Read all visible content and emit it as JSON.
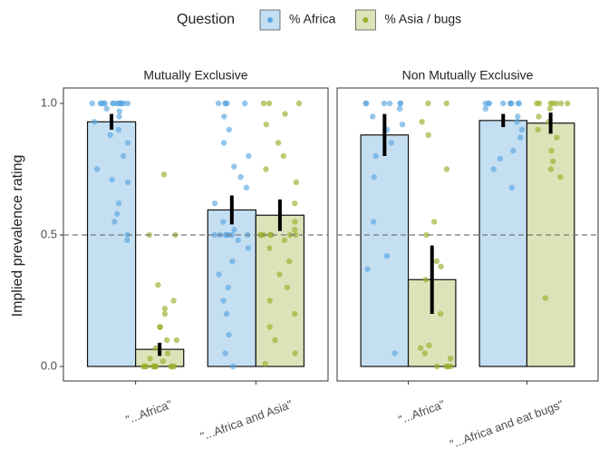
{
  "legend_title": "Question",
  "ylabel": "Implied prevalence rating",
  "chart_data": [
    {
      "type": "bar",
      "title": "Mutually Exclusive",
      "categories": [
        "\"...Africa\"",
        "\"...Africa and Asia\""
      ],
      "ylim": [
        0,
        1
      ],
      "yticks": [
        {
          "value": 0,
          "label": "0.0"
        },
        {
          "value": 0.5,
          "label": "0.5"
        },
        {
          "value": 1,
          "label": "1.0"
        }
      ],
      "reference_line": 0.5,
      "series": [
        {
          "name": "% Africa",
          "color": "#5aa6e0",
          "fill": "#c5dff2",
          "values": [
            0.93,
            0.595
          ],
          "errors": [
            0.03,
            0.055
          ],
          "points": [
            [
              1,
              1,
              1,
              1,
              1,
              1,
              1,
              1,
              1,
              1,
              1,
              1,
              1,
              1,
              0.98,
              0.97,
              0.95,
              0.93,
              0.9,
              0.88,
              0.85,
              0.8,
              0.75,
              0.71,
              0.7,
              0.62,
              0.58,
              0.55,
              0.5,
              0.48
            ],
            [
              1,
              1,
              1,
              1,
              1,
              0.95,
              0.9,
              0.85,
              0.8,
              0.76,
              0.72,
              0.68,
              0.62,
              0.55,
              0.52,
              0.5,
              0.5,
              0.5,
              0.5,
              0.5,
              0.5,
              0.5,
              0.48,
              0.45,
              0.4,
              0.35,
              0.3,
              0.25,
              0.2,
              0.12,
              0.05,
              0
            ]
          ]
        },
        {
          "name": "% Asia / bugs",
          "color": "#9aaf2a",
          "fill": "#dde3b8",
          "values": [
            0.065,
            0.575
          ],
          "errors": [
            0.025,
            0.06
          ],
          "points": [
            [
              0.73,
              0.5,
              0.5,
              0.31,
              0.25,
              0.22,
              0.2,
              0.15,
              0.15,
              0.1,
              0.1,
              0.07,
              0.05,
              0.03,
              0.02,
              0,
              0,
              0,
              0,
              0,
              0,
              0,
              0,
              0,
              0
            ],
            [
              1,
              1,
              1,
              0.96,
              0.92,
              0.85,
              0.8,
              0.75,
              0.7,
              0.62,
              0.55,
              0.52,
              0.5,
              0.5,
              0.5,
              0.5,
              0.5,
              0.5,
              0.5,
              0.48,
              0.45,
              0.4,
              0.35,
              0.3,
              0.25,
              0.2,
              0.15,
              0.1,
              0.05,
              0.01
            ]
          ]
        }
      ]
    },
    {
      "type": "bar",
      "title": "Non Mutually Exclusive",
      "categories": [
        "\"...Africa\"",
        "\"...Africa and eat bugs\""
      ],
      "ylim": [
        0,
        1
      ],
      "reference_line": 0.5,
      "series": [
        {
          "name": "% Africa",
          "color": "#5aa6e0",
          "fill": "#c5dff2",
          "values": [
            0.88,
            0.935
          ],
          "errors": [
            0.08,
            0.025
          ],
          "points": [
            [
              1,
              1,
              1,
              1,
              1,
              1,
              0.98,
              0.95,
              0.92,
              0.9,
              0.85,
              0.8,
              0.72,
              0.55,
              0.42,
              0.37,
              0.05
            ],
            [
              1,
              1,
              1,
              1,
              1,
              1,
              1,
              1,
              1,
              0.98,
              0.95,
              0.93,
              0.9,
              0.87,
              0.82,
              0.79,
              0.75,
              0.68
            ]
          ]
        },
        {
          "name": "% Asia / bugs",
          "color": "#9aaf2a",
          "fill": "#dde3b8",
          "values": [
            0.33,
            0.925
          ],
          "errors": [
            0.13,
            0.04
          ],
          "points": [
            [
              1,
              1,
              0.93,
              0.88,
              0.75,
              0.55,
              0.5,
              0.4,
              0.38,
              0.33,
              0.2,
              0.08,
              0.07,
              0.05,
              0.03,
              0,
              0,
              0,
              0
            ],
            [
              1,
              1,
              1,
              1,
              1,
              1,
              1,
              0.98,
              0.95,
              0.93,
              0.9,
              0.87,
              0.82,
              0.78,
              0.75,
              0.72,
              0.26
            ]
          ]
        }
      ]
    }
  ]
}
